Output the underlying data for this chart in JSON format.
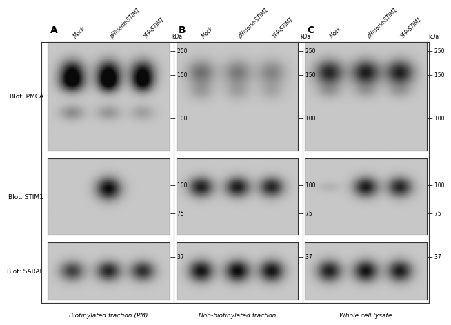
{
  "figure_bg": "#ffffff",
  "outer_box_color": "#ffffff",
  "panel_labels": [
    "A",
    "B",
    "C"
  ],
  "column_titles": [
    "Biotinylated fraction (PM)",
    "Non-biotinylated fraction",
    "Whole cell lysate"
  ],
  "row_labels": [
    "Blot: PMCA",
    "Blot: STIM1",
    "Blot: SARAF"
  ],
  "sample_labels": [
    "Mock",
    "pHluorin-STIM1",
    "YFP-STIM1"
  ],
  "kda_labels_top": [
    [
      "250",
      "150",
      "100"
    ],
    [
      "250",
      "150",
      "100"
    ],
    [
      "250",
      "150",
      "100"
    ]
  ],
  "kda_labels_mid": [
    [
      "100",
      "75"
    ],
    [
      "100",
      "75"
    ],
    [
      "100",
      "75"
    ]
  ],
  "kda_labels_bot": [
    [
      "37"
    ],
    [
      "37"
    ],
    [
      "37"
    ]
  ],
  "panel_bg": "#e8e8e8",
  "band_color_dark": "#1a1a1a",
  "band_color_mid": "#555555",
  "band_color_light": "#aaaaaa",
  "blot_bg_A_top": "#c8c8c8",
  "blot_bg_B_top": "#d8d8d8",
  "blot_bg_C_top": "#c0c0c0",
  "blot_bg_A_mid": "#d0d0d0",
  "blot_bg_B_mid": "#d0d0d0",
  "blot_bg_C_mid": "#c8c8c8",
  "blot_bg_A_bot": "#b8b8b8",
  "blot_bg_B_bot": "#b0b0b0",
  "blot_bg_C_bot": "#b8b8b8"
}
